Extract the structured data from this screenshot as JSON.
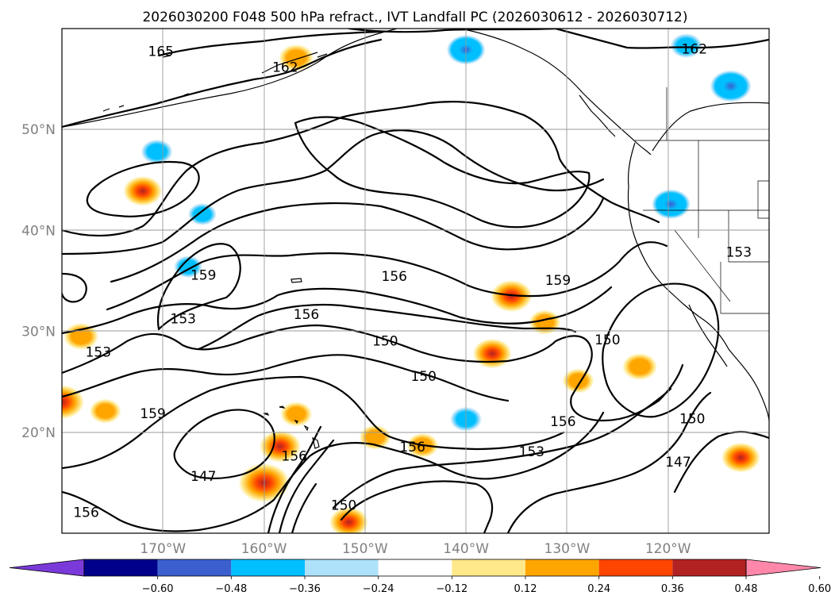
{
  "chart_data": {
    "type": "contour_map",
    "title": "2026030200 F048 500 hPa refract., IVT Landfall PC (2026030612 - 2026030712)",
    "map": {
      "lon_range": [
        -180,
        -110
      ],
      "lat_range": [
        10,
        60
      ],
      "lon_ticks": [
        {
          "value": -170,
          "label": "170°W"
        },
        {
          "value": -160,
          "label": "160°W"
        },
        {
          "value": -150,
          "label": "150°W"
        },
        {
          "value": -140,
          "label": "140°W"
        },
        {
          "value": -130,
          "label": "130°W"
        },
        {
          "value": -120,
          "label": "120°W"
        }
      ],
      "lat_ticks": [
        {
          "value": 50,
          "label": "50°N"
        },
        {
          "value": 40,
          "label": "40°N"
        },
        {
          "value": 30,
          "label": "30°N"
        },
        {
          "value": 20,
          "label": "20°N"
        }
      ],
      "grid": true
    },
    "colorbar": {
      "boundaries": [
        -0.72,
        -0.6,
        -0.48,
        -0.36,
        -0.24,
        -0.12,
        0.12,
        0.24,
        0.36,
        0.48,
        0.6,
        0.72
      ],
      "tick_labels": [
        "−0.60",
        "−0.48",
        "−0.36",
        "−0.24",
        "−0.12",
        "0.12",
        "0.24",
        "0.36",
        "0.48",
        "0.60"
      ],
      "colors": [
        "#7a3ad9",
        "#00008b",
        "#3c5fcf",
        "#00bfff",
        "#aee1fa",
        "#ffffff",
        "#ffe88a",
        "#ffa500",
        "#ff4500",
        "#b22222",
        "#ff88aa"
      ],
      "extend": "both"
    },
    "contour_labels": [
      {
        "text": "165",
        "lon": -170.2,
        "lat": 57.7
      },
      {
        "text": "162",
        "lon": -157.9,
        "lat": 56.1
      },
      {
        "text": "162",
        "lon": -117.4,
        "lat": 57.9
      },
      {
        "text": "159",
        "lon": -166.0,
        "lat": 35.5
      },
      {
        "text": "153",
        "lon": -168.0,
        "lat": 31.2
      },
      {
        "text": "156",
        "lon": -147.1,
        "lat": 35.4
      },
      {
        "text": "156",
        "lon": -155.8,
        "lat": 31.6
      },
      {
        "text": "150",
        "lon": -148.0,
        "lat": 29.0
      },
      {
        "text": "150",
        "lon": -144.2,
        "lat": 25.5
      },
      {
        "text": "159",
        "lon": -130.9,
        "lat": 35.0
      },
      {
        "text": "150",
        "lon": -126.0,
        "lat": 29.1
      },
      {
        "text": "153",
        "lon": -113.0,
        "lat": 37.8
      },
      {
        "text": "153",
        "lon": -176.4,
        "lat": 27.9
      },
      {
        "text": "159",
        "lon": -171.0,
        "lat": 21.8
      },
      {
        "text": "147",
        "lon": -166.0,
        "lat": 15.6
      },
      {
        "text": "156",
        "lon": -157.0,
        "lat": 17.6
      },
      {
        "text": "156",
        "lon": -145.3,
        "lat": 18.5
      },
      {
        "text": "153",
        "lon": -133.5,
        "lat": 18.0
      },
      {
        "text": "156",
        "lon": -130.4,
        "lat": 21.0
      },
      {
        "text": "150",
        "lon": -117.6,
        "lat": 21.3
      },
      {
        "text": "147",
        "lon": -119.0,
        "lat": 17.0
      },
      {
        "text": "150",
        "lon": -152.1,
        "lat": 12.7
      },
      {
        "text": "156",
        "lon": -177.6,
        "lat": 12.0
      }
    ],
    "anomaly_blobs": [
      {
        "lon": -180.0,
        "lat": 23.0,
        "value": 0.45
      },
      {
        "lon": -178.1,
        "lat": 29.5,
        "value": 0.3
      },
      {
        "lon": -175.7,
        "lat": 22.1,
        "value": 0.25
      },
      {
        "lon": -172.0,
        "lat": 43.9,
        "value": 0.36
      },
      {
        "lon": -160.0,
        "lat": 15.0,
        "value": 0.55
      },
      {
        "lon": -158.4,
        "lat": 18.6,
        "value": 0.4
      },
      {
        "lon": -156.8,
        "lat": 21.8,
        "value": 0.25
      },
      {
        "lon": -151.6,
        "lat": 11.1,
        "value": 0.36
      },
      {
        "lon": -149.0,
        "lat": 19.5,
        "value": 0.25
      },
      {
        "lon": -144.3,
        "lat": 18.7,
        "value": 0.25
      },
      {
        "lon": -135.5,
        "lat": 33.5,
        "value": 0.4
      },
      {
        "lon": -137.4,
        "lat": 27.8,
        "value": 0.36
      },
      {
        "lon": -132.2,
        "lat": 30.9,
        "value": 0.25
      },
      {
        "lon": -128.9,
        "lat": 25.1,
        "value": 0.25
      },
      {
        "lon": -122.8,
        "lat": 26.5,
        "value": 0.3
      },
      {
        "lon": -112.8,
        "lat": 17.5,
        "value": 0.36
      },
      {
        "lon": -156.8,
        "lat": 57.1,
        "value": 0.3
      },
      {
        "lon": -140.0,
        "lat": 57.9,
        "value": -0.36
      },
      {
        "lon": -119.7,
        "lat": 42.6,
        "value": -0.36
      },
      {
        "lon": -113.8,
        "lat": 54.3,
        "value": -0.4
      },
      {
        "lon": -118.2,
        "lat": 58.3,
        "value": -0.25
      },
      {
        "lon": -170.6,
        "lat": 47.8,
        "value": -0.25
      },
      {
        "lon": -140.0,
        "lat": 21.3,
        "value": -0.25
      },
      {
        "lon": -166.1,
        "lat": 41.6,
        "value": -0.2
      },
      {
        "lon": -167.5,
        "lat": 36.4,
        "value": -0.2
      }
    ]
  }
}
